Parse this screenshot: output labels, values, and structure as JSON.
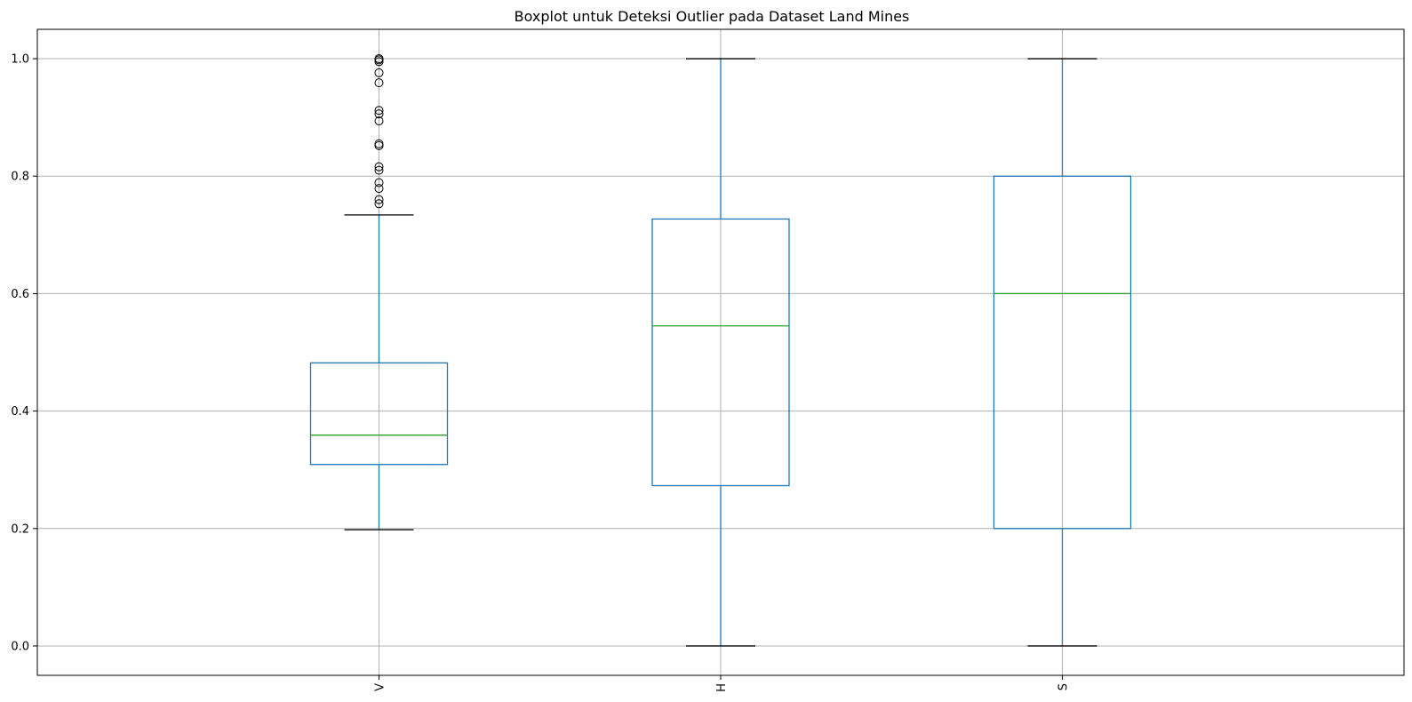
{
  "chart_data": {
    "type": "boxplot",
    "title": "Boxplot untuk Deteksi Outlier pada Dataset Land Mines",
    "xlabel": "",
    "ylabel": "",
    "ylim": [
      -0.05,
      1.05
    ],
    "yticks": [
      "0.0",
      "0.2",
      "0.4",
      "0.6",
      "0.8",
      "1.0"
    ],
    "ytick_values": [
      0.0,
      0.2,
      0.4,
      0.6,
      0.8,
      1.0
    ],
    "grid": true,
    "xtick_rotation": "vertical",
    "colors": {
      "box": "#1f77b4",
      "median": "#2ca02c",
      "cap": "#000000",
      "outlier": "#000000",
      "grid": "#b0b0b0",
      "frame": "#000000"
    },
    "series": [
      {
        "name": "V",
        "whisker_low": 0.198,
        "q1": 0.309,
        "median": 0.359,
        "q3": 0.482,
        "whisker_high": 0.734,
        "outliers": [
          0.753,
          0.76,
          0.779,
          0.789,
          0.81,
          0.816,
          0.852,
          0.855,
          0.894,
          0.906,
          0.912,
          0.959,
          0.976,
          0.995,
          0.998,
          1.0
        ]
      },
      {
        "name": "H",
        "whisker_low": 0.0,
        "q1": 0.273,
        "median": 0.545,
        "q3": 0.727,
        "whisker_high": 1.0,
        "outliers": []
      },
      {
        "name": "S",
        "whisker_low": 0.0,
        "q1": 0.2,
        "median": 0.6,
        "q3": 0.8,
        "whisker_high": 1.0,
        "outliers": []
      }
    ]
  }
}
